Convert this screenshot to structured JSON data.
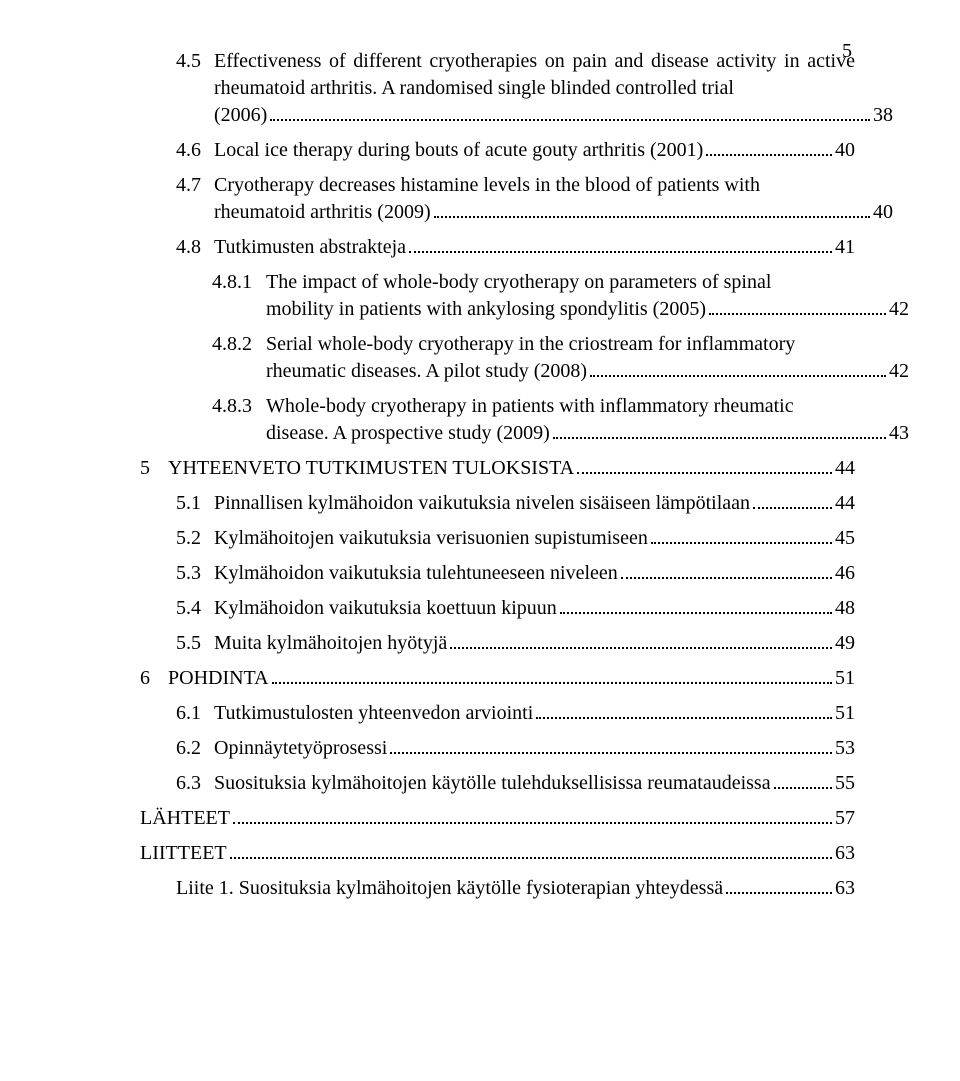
{
  "page_number": "5",
  "entries": [
    {
      "indent": "indent-2",
      "label": "4.5",
      "pre": "Effectiveness of different cryotherapies on pain and disease activity in active rheumatoid arthritis. A randomised single blinded controlled trial",
      "last": "(2006)",
      "page": "38"
    },
    {
      "indent": "indent-2",
      "label": "4.6",
      "pre": "",
      "last": "Local ice therapy during bouts of acute gouty arthritis (2001)",
      "page": "40"
    },
    {
      "indent": "indent-2",
      "label": "4.7",
      "pre": "Cryotherapy decreases histamine levels in the blood of patients with",
      "last": "rheumatoid arthritis (2009)",
      "page": "40"
    },
    {
      "indent": "indent-2",
      "label": "4.8",
      "pre": "",
      "last": "Tutkimusten abstrakteja",
      "page": "41"
    },
    {
      "indent": "indent-3",
      "label": "4.8.1",
      "pre": "The impact of whole-body cryotherapy on parameters of spinal",
      "last": "mobility in patients with ankylosing spondylitis (2005)",
      "page": "42",
      "hang": true
    },
    {
      "indent": "indent-3",
      "label": "4.8.2",
      "pre": "Serial whole-body cryotherapy in the criostream for inflammatory",
      "last": "rheumatic diseases. A pilot study (2008)",
      "page": "42",
      "hang": true
    },
    {
      "indent": "indent-3",
      "label": "4.8.3",
      "pre": "Whole-body cryotherapy in patients with inflammatory rheumatic",
      "last": "disease. A prospective study (2009)",
      "page": "43",
      "hang": true
    },
    {
      "indent": "indent-1",
      "label": "5",
      "pre": "",
      "last": "YHTEENVETO TUTKIMUSTEN TULOKSISTA",
      "page": "44"
    },
    {
      "indent": "indent-2",
      "label": "5.1",
      "pre": "",
      "last": "Pinnallisen kylmähoidon vaikutuksia nivelen sisäiseen lämpötilaan",
      "page": "44"
    },
    {
      "indent": "indent-2",
      "label": "5.2",
      "pre": "",
      "last": "Kylmähoitojen vaikutuksia verisuonien supistumiseen",
      "page": "45"
    },
    {
      "indent": "indent-2",
      "label": "5.3",
      "pre": "",
      "last": "Kylmähoidon vaikutuksia tulehtuneeseen niveleen",
      "page": "46"
    },
    {
      "indent": "indent-2",
      "label": "5.4",
      "pre": "",
      "last": "Kylmähoidon vaikutuksia koettuun kipuun",
      "page": "48"
    },
    {
      "indent": "indent-2",
      "label": "5.5",
      "pre": "",
      "last": "Muita kylmähoitojen hyötyjä",
      "page": "49"
    },
    {
      "indent": "indent-1",
      "label": "6",
      "pre": "",
      "last": "POHDINTA",
      "page": "51"
    },
    {
      "indent": "indent-2",
      "label": "6.1",
      "pre": "",
      "last": "Tutkimustulosten yhteenvedon arviointi",
      "page": "51"
    },
    {
      "indent": "indent-2",
      "label": "6.2",
      "pre": "",
      "last": "Opinnäytetyöprosessi",
      "page": "53"
    },
    {
      "indent": "indent-2",
      "label": "6.3",
      "pre": "",
      "last": "Suosituksia kylmähoitojen käytölle tulehduksellisissa reumataudeissa",
      "page": "55"
    },
    {
      "indent": "indent-1",
      "label": "",
      "pre": "",
      "last": "LÄHTEET",
      "page": "57"
    },
    {
      "indent": "indent-1",
      "label": "",
      "pre": "",
      "last": "LIITTEET",
      "page": "63"
    },
    {
      "indent": "indent-2",
      "label": "",
      "pre": "",
      "last": "Liite 1. Suosituksia kylmähoitojen käytölle fysioterapian yhteydessä",
      "page": "63"
    }
  ]
}
